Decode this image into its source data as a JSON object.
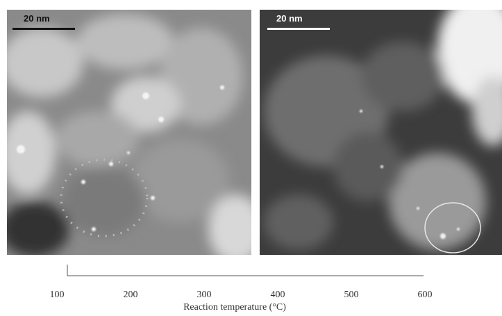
{
  "panels": [
    {
      "scale_bar": "20 nm"
    },
    {
      "scale_bar": "20 nm"
    }
  ],
  "axis": {
    "label": "Reaction temperature (°C)",
    "ticks": [
      100,
      200,
      300,
      400,
      500,
      600
    ]
  }
}
